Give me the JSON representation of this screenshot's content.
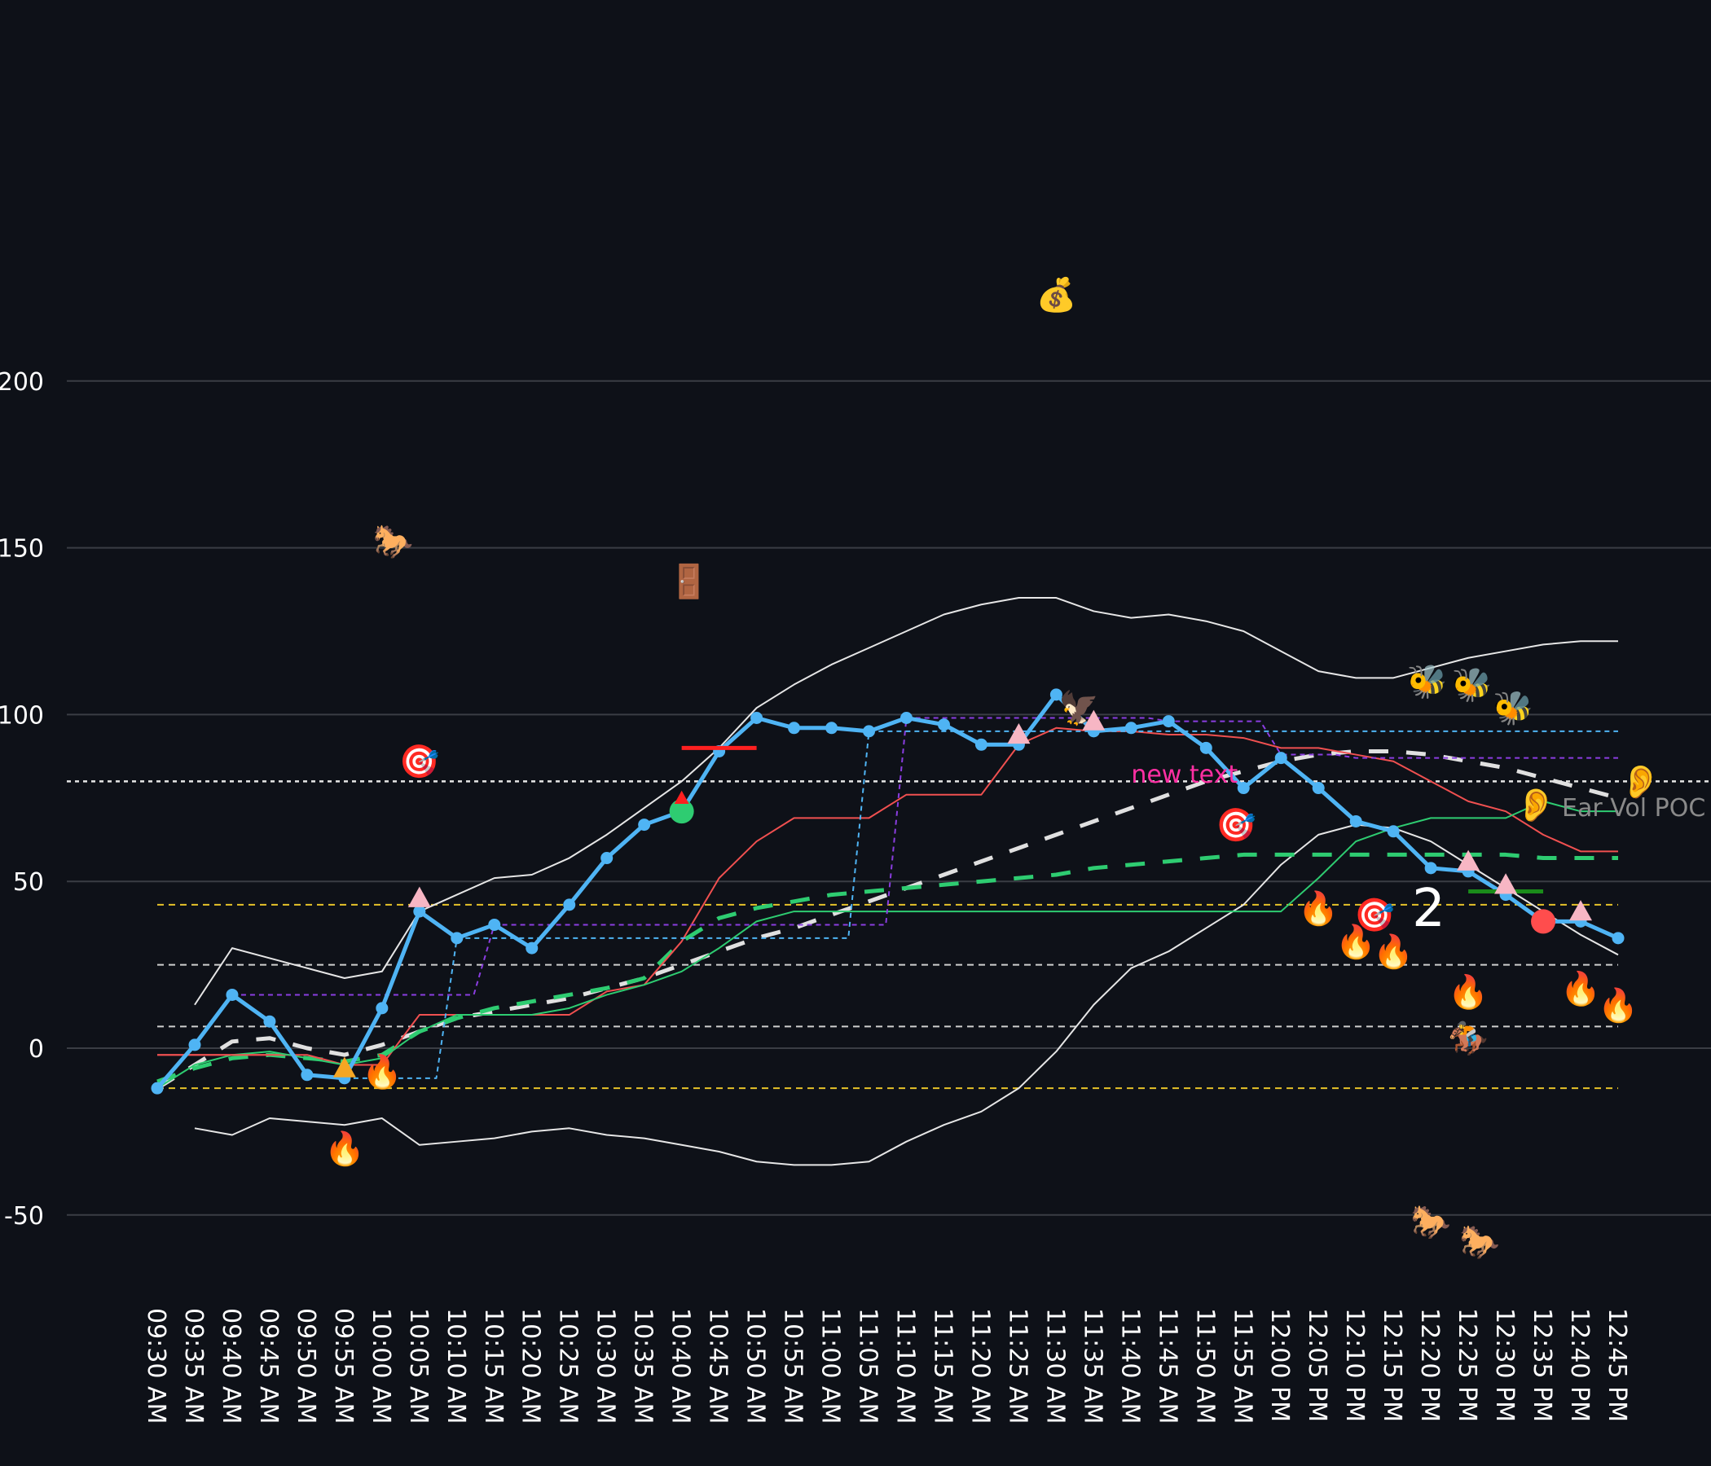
{
  "chart_data": {
    "type": "line",
    "title": "",
    "xlabel": "",
    "ylabel": "",
    "ylim": [
      -70,
      210
    ],
    "y_ticks": [
      200,
      150,
      100,
      50,
      0,
      -50
    ],
    "y_tick_labels": [
      "200",
      "150",
      "100",
      "50",
      "0",
      "-50"
    ],
    "grid": "horizontal",
    "categories": [
      "09:30 AM",
      "09:35 AM",
      "09:40 AM",
      "09:45 AM",
      "09:50 AM",
      "09:55 AM",
      "10:00 AM",
      "10:05 AM",
      "10:10 AM",
      "10:15 AM",
      "10:20 AM",
      "10:25 AM",
      "10:30 AM",
      "10:35 AM",
      "10:40 AM",
      "10:45 AM",
      "10:50 AM",
      "10:55 AM",
      "11:00 AM",
      "11:05 AM",
      "11:10 AM",
      "11:15 AM",
      "11:20 AM",
      "11:25 AM",
      "11:30 AM",
      "11:35 AM",
      "11:40 AM",
      "11:45 AM",
      "11:50 AM",
      "11:55 AM",
      "12:00 PM",
      "12:05 PM",
      "12:10 PM",
      "12:15 PM",
      "12:20 PM",
      "12:25 PM",
      "12:30 PM",
      "12:35 PM",
      "12:40 PM",
      "12:45 PM"
    ],
    "series": [
      {
        "name": "price",
        "color": "#4fb4f4",
        "style": "solid-markers",
        "values": [
          -12,
          1,
          16,
          8,
          -8,
          -9,
          12,
          41,
          33,
          37,
          30,
          43,
          57,
          67,
          71,
          89,
          99,
          96,
          96,
          95,
          99,
          97,
          91,
          91,
          106,
          95,
          96,
          98,
          90,
          78,
          87,
          78,
          68,
          65,
          54,
          53,
          46,
          38,
          38,
          33
        ]
      },
      {
        "name": "upper band",
        "color": "#e6e6e6",
        "style": "solid-thin",
        "values": [
          null,
          13,
          30,
          27,
          24,
          21,
          23,
          41,
          46,
          51,
          52,
          57,
          64,
          72,
          80,
          90,
          102,
          109,
          115,
          120,
          125,
          130,
          133,
          135,
          135,
          131,
          129,
          130,
          128,
          125,
          119,
          113,
          111,
          111,
          114,
          117,
          119,
          121,
          122,
          122
        ]
      },
      {
        "name": "lower band",
        "color": "#e6e6e6",
        "style": "solid-thin",
        "values": [
          null,
          -24,
          -26,
          -21,
          -22,
          -23,
          -21,
          -29,
          -28,
          -27,
          -25,
          -24,
          -26,
          -27,
          -29,
          -31,
          -34,
          -35,
          -35,
          -34,
          -28,
          -23,
          -19,
          -12,
          -1,
          13,
          24,
          29,
          36,
          43,
          55,
          64,
          67,
          66,
          62,
          55,
          48,
          41,
          34,
          28
        ]
      },
      {
        "name": "white dashed avg",
        "color": "#e0e0e0",
        "style": "dashed-thick",
        "values": [
          -12,
          -5,
          2,
          3,
          0,
          -2,
          1,
          5,
          9,
          11,
          13,
          15,
          18,
          21,
          25,
          29,
          33,
          36,
          40,
          44,
          48,
          52,
          56,
          60,
          64,
          68,
          72,
          76,
          80,
          83,
          86,
          88,
          89,
          89,
          88,
          86,
          84,
          81,
          78,
          75
        ]
      },
      {
        "name": "green dashed avg",
        "color": "#2ecc71",
        "style": "dashed-thick",
        "values": [
          -10,
          -6,
          -3,
          -2,
          -3,
          -4,
          -2,
          5,
          9,
          12,
          14,
          16,
          18,
          21,
          32,
          39,
          42,
          44,
          46,
          47,
          48,
          49,
          50,
          51,
          52,
          54,
          55,
          56,
          57,
          58,
          58,
          58,
          58,
          58,
          58,
          58,
          58,
          57,
          57,
          57
        ]
      },
      {
        "name": "red line",
        "color": "#f05050",
        "style": "solid-thin",
        "values": [
          -2,
          -2,
          -2,
          -2,
          -2,
          -5,
          -5,
          10,
          10,
          10,
          10,
          10,
          17,
          19,
          32,
          51,
          62,
          69,
          69,
          69,
          76,
          76,
          76,
          91,
          96,
          95,
          95,
          94,
          94,
          93,
          90,
          90,
          88,
          86,
          80,
          74,
          71,
          64,
          59,
          59
        ]
      },
      {
        "name": "green line",
        "color": "#2ecc71",
        "style": "solid-thin",
        "values": [
          -12,
          -5,
          -2,
          -1,
          -3,
          -5,
          -3,
          5,
          10,
          10,
          10,
          12,
          16,
          19,
          23,
          30,
          38,
          41,
          41,
          41,
          41,
          41,
          41,
          41,
          41,
          41,
          41,
          41,
          41,
          41,
          41,
          51,
          62,
          66,
          69,
          69,
          69,
          74,
          71,
          71
        ]
      },
      {
        "name": "purple step",
        "color": "#8a3de0",
        "style": "dashed-step",
        "values": [
          null,
          null,
          16,
          16,
          16,
          16,
          16,
          16,
          16,
          37,
          37,
          37,
          37,
          37,
          37,
          37,
          37,
          37,
          37,
          37,
          99,
          99,
          99,
          99,
          99,
          99,
          99,
          98,
          98,
          98,
          88,
          88,
          87,
          87,
          87,
          87,
          87,
          87,
          87,
          87
        ]
      },
      {
        "name": "blue step",
        "color": "#4fb4f4",
        "style": "dashed-step",
        "values": [
          null,
          null,
          null,
          null,
          null,
          -9,
          -9,
          -9,
          33,
          33,
          33,
          33,
          33,
          33,
          33,
          33,
          33,
          33,
          33,
          95,
          95,
          95,
          95,
          95,
          95,
          95,
          95,
          95,
          95,
          95,
          95,
          95,
          95,
          95,
          95,
          95,
          95,
          95,
          95,
          95
        ]
      },
      {
        "name": "flat red",
        "color": "#f05050",
        "style": "solid-thin",
        "values": [
          -2,
          -2,
          -2,
          -2,
          null,
          null,
          null,
          null,
          null,
          null,
          null,
          null,
          null,
          null,
          null,
          null,
          null,
          null,
          null,
          null,
          null,
          null,
          null,
          null,
          null,
          null,
          null,
          null,
          null,
          null,
          null,
          null,
          null,
          null,
          null,
          null,
          null,
          null,
          null,
          null
        ]
      }
    ],
    "hlines": [
      {
        "y": 80,
        "color": "#e6e6e6",
        "style": "dotted"
      },
      {
        "y": 43,
        "color": "#e6c229",
        "style": "dashed"
      },
      {
        "y": 25,
        "color": "#cfcfcf",
        "style": "dashed"
      },
      {
        "y": 6.5,
        "color": "#cfcfcf",
        "style": "dashed"
      },
      {
        "y": -12,
        "color": "#e6c229",
        "style": "dashed"
      }
    ],
    "segments": [
      {
        "x0": 14.0,
        "x1": 16.0,
        "y": 90,
        "color": "#ff2020"
      },
      {
        "x0": 35.0,
        "x1": 37.0,
        "y": 47,
        "color": "#1a8c1a"
      }
    ],
    "markers": [
      {
        "x": 5,
        "y": -6,
        "shape": "triangle",
        "color": "#f5a623"
      },
      {
        "x": 7,
        "y": 45,
        "shape": "triangle",
        "color": "#f7b6c4"
      },
      {
        "x": 14,
        "y": 71,
        "shape": "circle",
        "color": "#2ecc71"
      },
      {
        "x": 14,
        "y": 75,
        "shape": "smalltri",
        "color": "#ff2020"
      },
      {
        "x": 23,
        "y": 94,
        "shape": "triangle",
        "color": "#f7b6c4"
      },
      {
        "x": 25,
        "y": 98,
        "shape": "triangle",
        "color": "#f7b6c4"
      },
      {
        "x": 35,
        "y": 56,
        "shape": "triangle",
        "color": "#f7b6c4"
      },
      {
        "x": 36,
        "y": 49,
        "shape": "triangle",
        "color": "#f7b6c4"
      },
      {
        "x": 37,
        "y": 38,
        "shape": "circle",
        "color": "#ff4d4d"
      },
      {
        "x": 38,
        "y": 41,
        "shape": "triangle",
        "color": "#f7b6c4"
      }
    ],
    "annotations": [
      {
        "x": 26,
        "y": 82,
        "text": "new text",
        "color": "#ff2fa3"
      },
      {
        "x": 37.5,
        "y": 72,
        "text": "Ear Vol POC",
        "color": "#8a8a8a"
      },
      {
        "x": 33.5,
        "y": 42,
        "text": "2",
        "color": "#ffffff"
      }
    ],
    "emojis": [
      {
        "x": 24,
        "y": 226,
        "glyph": "💰",
        "name": "money-bag-icon"
      },
      {
        "x": 6.3,
        "y": 152,
        "glyph": "🐎",
        "name": "horse-icon"
      },
      {
        "x": 14.2,
        "y": 140,
        "glyph": "🚪",
        "name": "door-icon"
      },
      {
        "x": 7,
        "y": 86,
        "glyph": "🎯",
        "name": "target-icon"
      },
      {
        "x": 24.6,
        "y": 102,
        "glyph": "🦅",
        "name": "eagle-icon"
      },
      {
        "x": 28.8,
        "y": 67,
        "glyph": "🎯",
        "name": "target-icon"
      },
      {
        "x": 32.5,
        "y": 40,
        "glyph": "🎯",
        "name": "target-icon"
      },
      {
        "x": 33.9,
        "y": 110,
        "glyph": "🐝",
        "name": "bee-icon"
      },
      {
        "x": 35.1,
        "y": 109,
        "glyph": "🐝",
        "name": "bee-icon"
      },
      {
        "x": 36.2,
        "y": 102,
        "glyph": "🐝",
        "name": "bee-icon"
      },
      {
        "x": 36.8,
        "y": 73,
        "glyph": "👂",
        "name": "ear-icon"
      },
      {
        "x": 39.6,
        "y": 80,
        "glyph": "👂",
        "name": "ear-icon"
      },
      {
        "x": 31,
        "y": 42,
        "glyph": "🔥",
        "name": "fire-icon"
      },
      {
        "x": 32,
        "y": 32,
        "glyph": "🔥",
        "name": "fire-icon"
      },
      {
        "x": 33,
        "y": 29,
        "glyph": "🔥",
        "name": "fire-icon"
      },
      {
        "x": 35,
        "y": 17,
        "glyph": "🔥",
        "name": "fire-icon"
      },
      {
        "x": 6,
        "y": -7,
        "glyph": "🔥",
        "name": "fire-icon"
      },
      {
        "x": 5,
        "y": -30,
        "glyph": "🔥",
        "name": "fire-icon"
      },
      {
        "x": 38,
        "y": 18,
        "glyph": "🔥",
        "name": "fire-icon"
      },
      {
        "x": 39,
        "y": 13,
        "glyph": "🔥",
        "name": "fire-icon"
      },
      {
        "x": 35,
        "y": 3,
        "glyph": "🏇",
        "name": "horse-racing-icon"
      },
      {
        "x": 34,
        "y": -52,
        "glyph": "🐎",
        "name": "horse-icon"
      },
      {
        "x": 35.3,
        "y": -58,
        "glyph": "🐎",
        "name": "horse-icon"
      }
    ]
  }
}
